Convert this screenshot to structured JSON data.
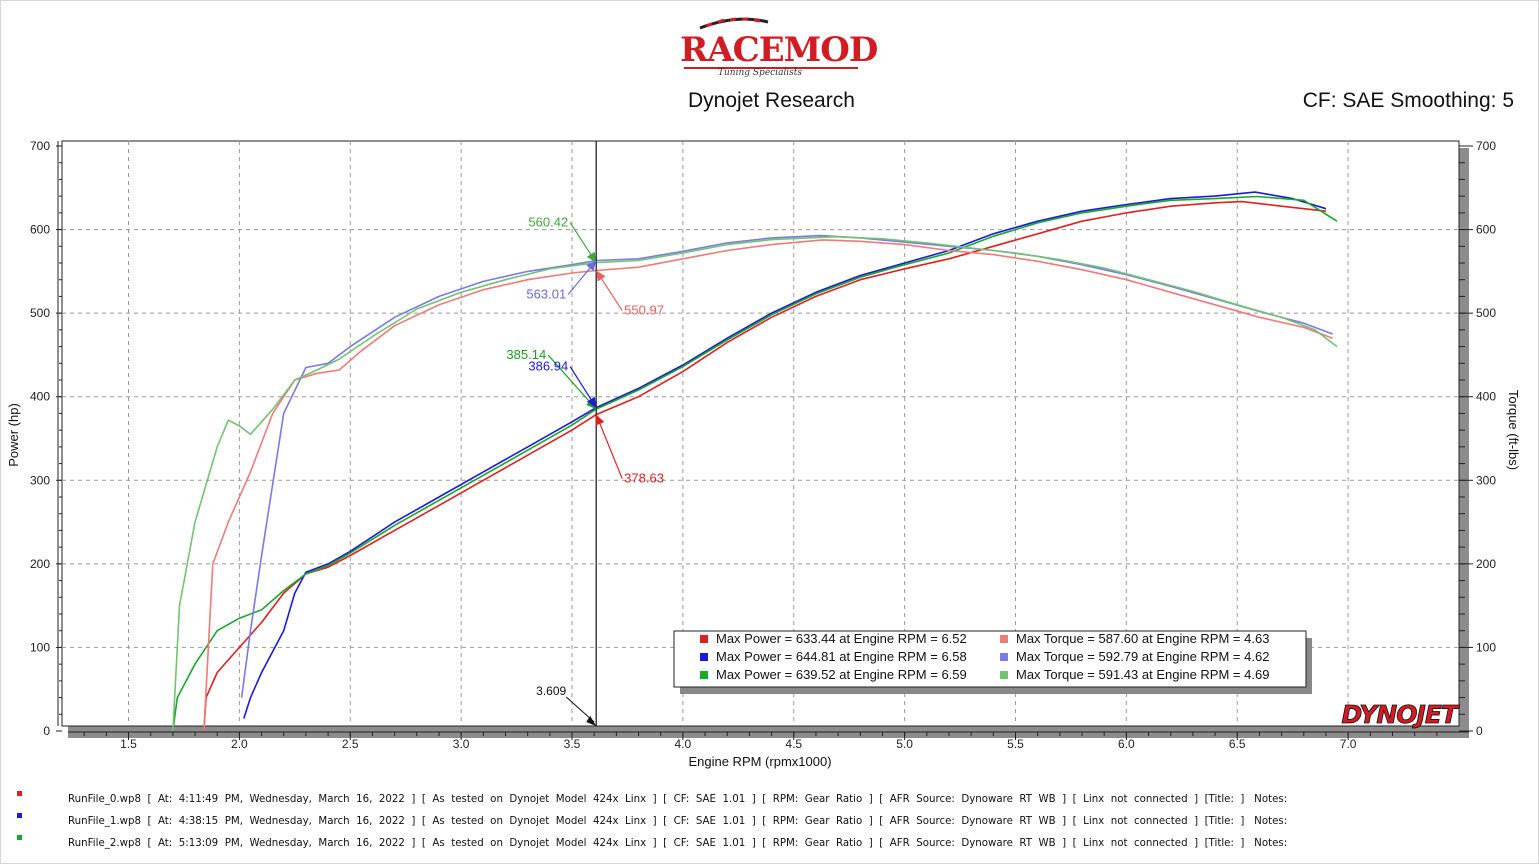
{
  "header": {
    "brand": "RACEMOD",
    "tagline": "Tuning Specialists",
    "subtitle": "Dynojet Research",
    "cf_text": "CF: SAE Smoothing: 5"
  },
  "chart_data": {
    "type": "line",
    "title": "",
    "xlabel": "Engine RPM (rpmx1000)",
    "ylabel_left": "Power (hp)",
    "ylabel_right": "Torque (ft-lbs)",
    "xlim": [
      1.2,
      7.5
    ],
    "ylim": [
      0,
      700
    ],
    "x_ticks": [
      "1.5",
      "2.0",
      "2.5",
      "3.0",
      "3.5",
      "4.0",
      "4.5",
      "5.0",
      "5.5",
      "6.0",
      "6.5",
      "7.0"
    ],
    "y_ticks": [
      "0",
      "100",
      "200",
      "300",
      "400",
      "500",
      "600",
      "700"
    ],
    "grid": true,
    "cursor": {
      "x": 3.609,
      "label": "3.609"
    },
    "series": [
      {
        "name": "RunFile_0 Power",
        "color": "#e02020",
        "kind": "power",
        "points": [
          [
            1.84,
            0
          ],
          [
            1.85,
            40
          ],
          [
            1.9,
            70
          ],
          [
            2.0,
            100
          ],
          [
            2.1,
            130
          ],
          [
            2.2,
            165
          ],
          [
            2.3,
            188
          ],
          [
            2.4,
            196
          ],
          [
            2.5,
            210
          ],
          [
            2.7,
            240
          ],
          [
            2.9,
            270
          ],
          [
            3.1,
            300
          ],
          [
            3.3,
            330
          ],
          [
            3.5,
            360
          ],
          [
            3.609,
            378.63
          ],
          [
            3.8,
            400
          ],
          [
            4.0,
            430
          ],
          [
            4.2,
            465
          ],
          [
            4.4,
            495
          ],
          [
            4.6,
            520
          ],
          [
            4.8,
            540
          ],
          [
            5.0,
            553
          ],
          [
            5.2,
            565
          ],
          [
            5.4,
            580
          ],
          [
            5.6,
            595
          ],
          [
            5.8,
            610
          ],
          [
            6.0,
            620
          ],
          [
            6.2,
            628
          ],
          [
            6.4,
            632
          ],
          [
            6.52,
            633.44
          ],
          [
            6.7,
            628
          ],
          [
            6.9,
            622
          ]
        ]
      },
      {
        "name": "RunFile_1 Power",
        "color": "#1a1adc",
        "kind": "power",
        "points": [
          [
            2.02,
            15
          ],
          [
            2.05,
            40
          ],
          [
            2.1,
            70
          ],
          [
            2.2,
            120
          ],
          [
            2.25,
            165
          ],
          [
            2.3,
            190
          ],
          [
            2.4,
            200
          ],
          [
            2.5,
            215
          ],
          [
            2.7,
            250
          ],
          [
            2.9,
            280
          ],
          [
            3.1,
            310
          ],
          [
            3.3,
            340
          ],
          [
            3.5,
            370
          ],
          [
            3.609,
            386.94
          ],
          [
            3.8,
            410
          ],
          [
            4.0,
            438
          ],
          [
            4.2,
            470
          ],
          [
            4.4,
            500
          ],
          [
            4.6,
            525
          ],
          [
            4.8,
            545
          ],
          [
            5.0,
            560
          ],
          [
            5.2,
            575
          ],
          [
            5.4,
            595
          ],
          [
            5.6,
            610
          ],
          [
            5.8,
            622
          ],
          [
            6.0,
            630
          ],
          [
            6.2,
            637
          ],
          [
            6.4,
            640
          ],
          [
            6.58,
            644.81
          ],
          [
            6.75,
            637
          ],
          [
            6.9,
            625
          ]
        ]
      },
      {
        "name": "RunFile_2 Power",
        "color": "#1aa82a",
        "kind": "power",
        "points": [
          [
            1.7,
            0
          ],
          [
            1.72,
            40
          ],
          [
            1.8,
            80
          ],
          [
            1.9,
            120
          ],
          [
            2.0,
            135
          ],
          [
            2.1,
            145
          ],
          [
            2.2,
            168
          ],
          [
            2.3,
            188
          ],
          [
            2.4,
            198
          ],
          [
            2.5,
            213
          ],
          [
            2.7,
            246
          ],
          [
            2.9,
            276
          ],
          [
            3.1,
            306
          ],
          [
            3.3,
            336
          ],
          [
            3.5,
            366
          ],
          [
            3.609,
            385.14
          ],
          [
            3.8,
            408
          ],
          [
            4.0,
            436
          ],
          [
            4.2,
            468
          ],
          [
            4.4,
            498
          ],
          [
            4.6,
            523
          ],
          [
            4.8,
            543
          ],
          [
            5.0,
            558
          ],
          [
            5.2,
            572
          ],
          [
            5.4,
            592
          ],
          [
            5.6,
            608
          ],
          [
            5.8,
            620
          ],
          [
            6.0,
            628
          ],
          [
            6.2,
            635
          ],
          [
            6.4,
            637
          ],
          [
            6.59,
            639.52
          ],
          [
            6.8,
            635
          ],
          [
            6.95,
            610
          ]
        ]
      },
      {
        "name": "RunFile_0 Torque",
        "color": "#f07a78",
        "kind": "torque",
        "points": [
          [
            1.84,
            0
          ],
          [
            1.88,
            200
          ],
          [
            1.95,
            250
          ],
          [
            2.05,
            310
          ],
          [
            2.15,
            380
          ],
          [
            2.25,
            420
          ],
          [
            2.35,
            428
          ],
          [
            2.45,
            432
          ],
          [
            2.55,
            455
          ],
          [
            2.7,
            485
          ],
          [
            2.9,
            510
          ],
          [
            3.1,
            528
          ],
          [
            3.3,
            540
          ],
          [
            3.5,
            548
          ],
          [
            3.609,
            550.97
          ],
          [
            3.8,
            555
          ],
          [
            4.0,
            565
          ],
          [
            4.2,
            575
          ],
          [
            4.4,
            582
          ],
          [
            4.63,
            587.6
          ],
          [
            4.8,
            586
          ],
          [
            5.0,
            582
          ],
          [
            5.2,
            575
          ],
          [
            5.4,
            570
          ],
          [
            5.6,
            562
          ],
          [
            5.8,
            552
          ],
          [
            6.0,
            540
          ],
          [
            6.2,
            525
          ],
          [
            6.4,
            510
          ],
          [
            6.6,
            495
          ],
          [
            6.8,
            483
          ],
          [
            6.93,
            470
          ]
        ]
      },
      {
        "name": "RunFile_1 Torque",
        "color": "#7a7ae8",
        "kind": "torque",
        "points": [
          [
            2.01,
            40
          ],
          [
            2.05,
            120
          ],
          [
            2.1,
            210
          ],
          [
            2.2,
            380
          ],
          [
            2.3,
            435
          ],
          [
            2.4,
            440
          ],
          [
            2.5,
            460
          ],
          [
            2.7,
            495
          ],
          [
            2.9,
            520
          ],
          [
            3.1,
            538
          ],
          [
            3.3,
            550
          ],
          [
            3.5,
            558
          ],
          [
            3.609,
            563.01
          ],
          [
            3.8,
            565
          ],
          [
            4.0,
            574
          ],
          [
            4.2,
            584
          ],
          [
            4.4,
            590
          ],
          [
            4.62,
            592.79
          ],
          [
            4.8,
            590
          ],
          [
            5.0,
            585
          ],
          [
            5.2,
            580
          ],
          [
            5.4,
            575
          ],
          [
            5.6,
            568
          ],
          [
            5.8,
            558
          ],
          [
            6.0,
            546
          ],
          [
            6.2,
            532
          ],
          [
            6.4,
            517
          ],
          [
            6.6,
            502
          ],
          [
            6.8,
            488
          ],
          [
            6.93,
            475
          ]
        ]
      },
      {
        "name": "RunFile_2 Torque",
        "color": "#72c472",
        "kind": "torque",
        "points": [
          [
            1.7,
            0
          ],
          [
            1.73,
            150
          ],
          [
            1.8,
            250
          ],
          [
            1.9,
            340
          ],
          [
            1.95,
            372
          ],
          [
            2.0,
            365
          ],
          [
            2.05,
            355
          ],
          [
            2.15,
            385
          ],
          [
            2.25,
            420
          ],
          [
            2.35,
            432
          ],
          [
            2.45,
            445
          ],
          [
            2.6,
            472
          ],
          [
            2.8,
            505
          ],
          [
            3.0,
            525
          ],
          [
            3.2,
            540
          ],
          [
            3.4,
            553
          ],
          [
            3.609,
            560.42
          ],
          [
            3.8,
            563
          ],
          [
            4.0,
            572
          ],
          [
            4.2,
            582
          ],
          [
            4.4,
            588
          ],
          [
            4.69,
            591.43
          ],
          [
            4.9,
            589
          ],
          [
            5.1,
            584
          ],
          [
            5.3,
            578
          ],
          [
            5.5,
            572
          ],
          [
            5.7,
            564
          ],
          [
            5.9,
            554
          ],
          [
            6.1,
            540
          ],
          [
            6.3,
            526
          ],
          [
            6.5,
            510
          ],
          [
            6.7,
            495
          ],
          [
            6.85,
            480
          ],
          [
            6.95,
            460
          ]
        ]
      }
    ],
    "annotations": [
      {
        "text": "560.42",
        "color": "#3ea83e",
        "x": 3.609,
        "y": 560.42
      },
      {
        "text": "563.01",
        "color": "#6a6ae0",
        "x": 3.609,
        "y": 563.01
      },
      {
        "text": "550.97",
        "color": "#e86060",
        "x": 3.609,
        "y": 550.97
      },
      {
        "text": "385.14",
        "color": "#18a018",
        "x": 3.609,
        "y": 385.14
      },
      {
        "text": "386.94",
        "color": "#1a1adc",
        "x": 3.609,
        "y": 386.94
      },
      {
        "text": "378.63",
        "color": "#e02020",
        "x": 3.609,
        "y": 378.63
      }
    ],
    "legend": {
      "placement": "bottom-right",
      "items": [
        {
          "color": "#e02020",
          "text": "Max Power = 633.44 at Engine RPM = 6.52"
        },
        {
          "color": "#f07a78",
          "text": "Max Torque = 587.60 at Engine RPM = 4.63"
        },
        {
          "color": "#1a1adc",
          "text": "Max Power = 644.81 at Engine RPM = 6.58"
        },
        {
          "color": "#7a7ae8",
          "text": "Max Torque = 592.79 at Engine RPM = 4.62"
        },
        {
          "color": "#1aa82a",
          "text": "Max Power = 639.52 at Engine RPM = 6.59"
        },
        {
          "color": "#72c472",
          "text": "Max Torque = 591.43 at Engine RPM = 4.69"
        }
      ]
    },
    "watermark": "DYNOJET"
  },
  "runs": [
    {
      "color": "#e02020",
      "text": "RunFile_0.wp8  [  At:  4:11:49  PM,  Wednesday,  March  16,  2022  ]  [  As  tested  on  Dynojet  Model  424x  Linx  ]  [  CF:  SAE  1.01  ]  [  RPM:  Gear  Ratio  ]  [  AFR  Source:  Dynoware  RT  WB  ]  [  Linx  not  connected  ]  [Title:  ]   Notes:"
    },
    {
      "color": "#1a1adc",
      "text": "RunFile_1.wp8  [  At:  4:38:15  PM,  Wednesday,  March  16,  2022  ]  [  As  tested  on  Dynojet  Model  424x  Linx  ]  [  CF:  SAE  1.01  ]  [  RPM:  Gear  Ratio  ]  [  AFR  Source:  Dynoware  RT  WB  ]  [  Linx  not  connected  ]  [Title:  ]   Notes:"
    },
    {
      "color": "#1aa82a",
      "text": "RunFile_2.wp8  [  At:  5:13:09  PM,  Wednesday,  March  16,  2022  ]  [  As  tested  on  Dynojet  Model  424x  Linx  ]  [  CF:  SAE  1.01  ]  [  RPM:  Gear  Ratio  ]  [  AFR  Source:  Dynoware  RT  WB  ]  [  Linx  not  connected  ]  [Title:  ]   Notes:"
    }
  ]
}
